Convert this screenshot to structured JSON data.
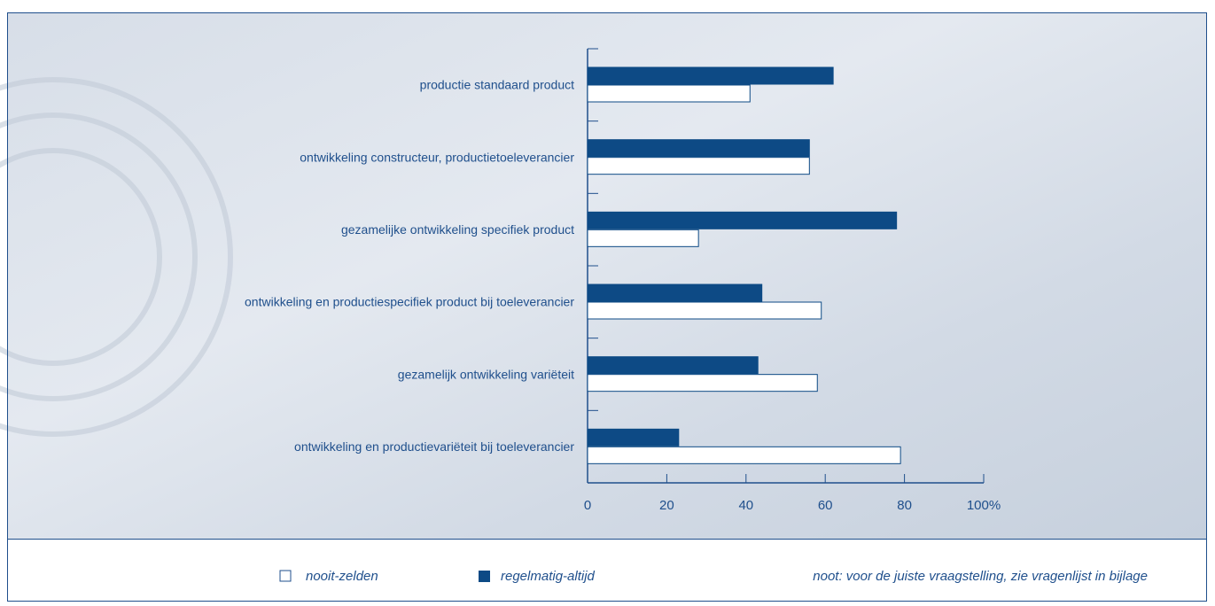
{
  "chart_data": {
    "type": "bar",
    "orientation": "horizontal",
    "categories": [
      "productie standaard product",
      "ontwikkeling constructeur, productietoeleverancier",
      "gezamelijke ontwikkeling specifiek product",
      "ontwikkeling en productiespecifiek product bij toeleverancier",
      "gezamelijk ontwikkeling variëteit",
      "ontwikkeling en productievariëteit bij toeleverancier"
    ],
    "series": [
      {
        "name": "nooit-zelden",
        "color": "#ffffff",
        "values": [
          41,
          56,
          28,
          59,
          58,
          79
        ]
      },
      {
        "name": "regelmatig-altijd",
        "color": "#0d4a85",
        "values": [
          62,
          56,
          78,
          44,
          43,
          23
        ]
      }
    ],
    "xlim": [
      0,
      100
    ],
    "xticks": [
      0,
      20,
      40,
      60,
      80,
      {
        "value": 100,
        "label": "100%"
      }
    ],
    "note": "noot: voor de juiste vraagstelling, zie vragenlijst in bijlage"
  }
}
